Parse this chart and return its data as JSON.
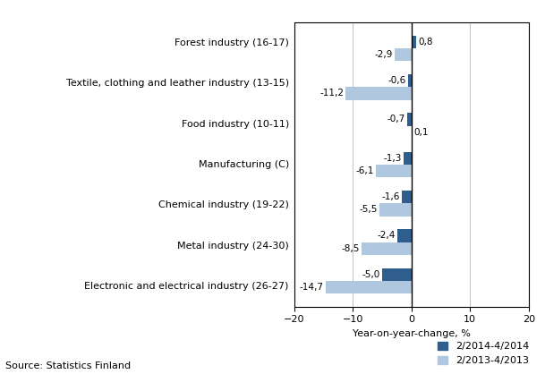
{
  "categories": [
    "Electronic and electrical industry (26-27)",
    "Metal industry (24-30)",
    "Chemical industry (19-22)",
    "Manufacturing (C)",
    "Food industry (10-11)",
    "Textile, clothing and leather industry (13-15)",
    "Forest industry (16-17)"
  ],
  "series1_label": "2/2014-4/2014",
  "series2_label": "2/2013-4/2013",
  "series1_values": [
    -5.0,
    -2.4,
    -1.6,
    -1.3,
    -0.7,
    -0.6,
    0.8
  ],
  "series2_values": [
    -14.7,
    -8.5,
    -5.5,
    -6.1,
    0.1,
    -11.2,
    -2.9
  ],
  "series1_color": "#2E5D8E",
  "series2_color": "#AFC8E0",
  "bar_height": 0.33,
  "xlim": [
    -20,
    20
  ],
  "xticks": [
    -20,
    -10,
    0,
    10,
    20
  ],
  "xlabel": "Year-on-year-change, %",
  "source_text": "Source: Statistics Finland",
  "label_fontsize": 8,
  "tick_fontsize": 8,
  "source_fontsize": 8,
  "value_fontsize": 7.5
}
